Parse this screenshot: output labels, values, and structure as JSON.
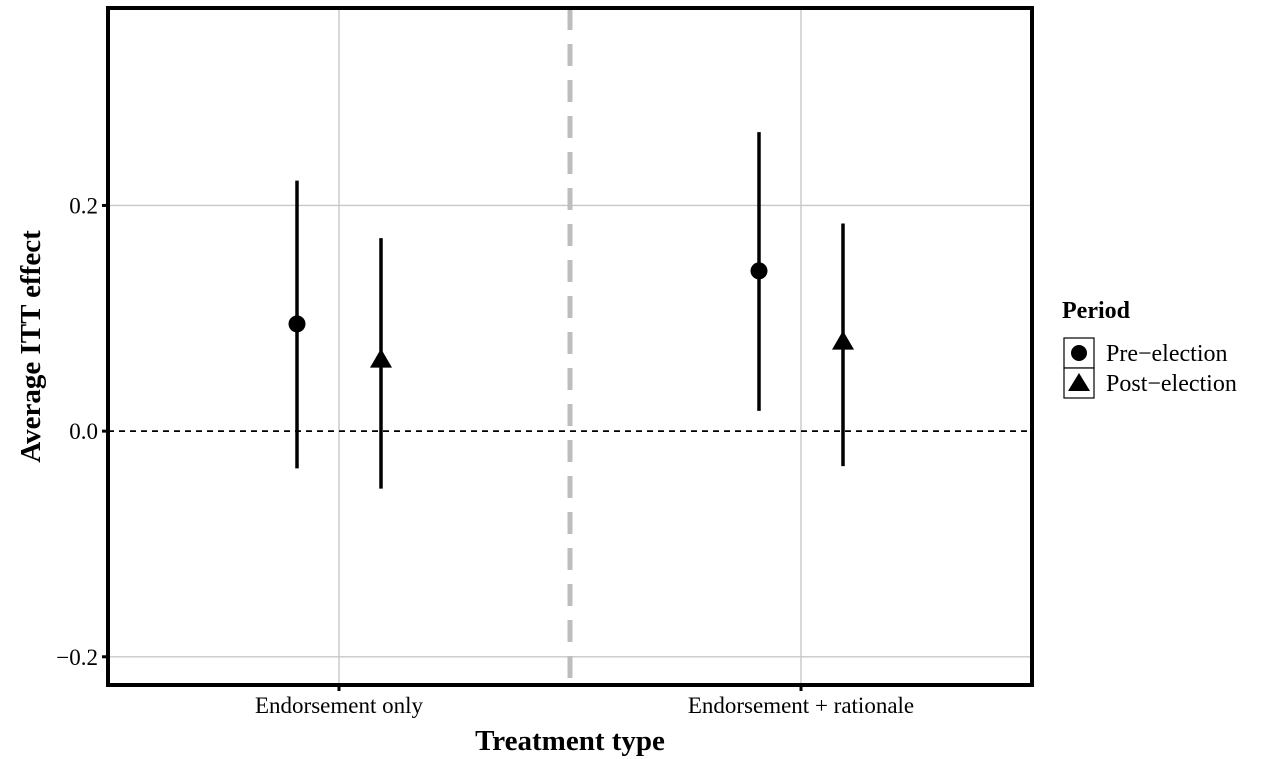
{
  "chart_data": {
    "type": "scatter",
    "title": "",
    "xlabel": "Treatment type",
    "ylabel": "Average ITT effect",
    "categories": [
      "Endorsement only",
      "Endorsement + rationale"
    ],
    "ylim": [
      -0.225,
      0.375
    ],
    "yticks": [
      -0.2,
      0.0,
      0.2
    ],
    "ytick_labels": [
      "−0.2",
      "0.0",
      "0.2"
    ],
    "grid": true,
    "reference_line_y": 0.0,
    "legend": {
      "title": "Period",
      "placement": "right",
      "entries": [
        "Pre−election",
        "Post−election"
      ]
    },
    "series": [
      {
        "name": "Pre−election",
        "marker": "circle",
        "points": [
          {
            "category": "Endorsement only",
            "estimate": 0.095,
            "lower": -0.033,
            "upper": 0.222
          },
          {
            "category": "Endorsement + rationale",
            "estimate": 0.142,
            "lower": 0.018,
            "upper": 0.265
          }
        ]
      },
      {
        "name": "Post−election",
        "marker": "triangle",
        "points": [
          {
            "category": "Endorsement only",
            "estimate": 0.063,
            "lower": -0.051,
            "upper": 0.171
          },
          {
            "category": "Endorsement + rationale",
            "estimate": 0.079,
            "lower": -0.031,
            "upper": 0.184
          }
        ]
      }
    ],
    "colors": {
      "marks": "#000000",
      "grid": "#c8c8c8",
      "separator": "#bdbdbd"
    }
  }
}
